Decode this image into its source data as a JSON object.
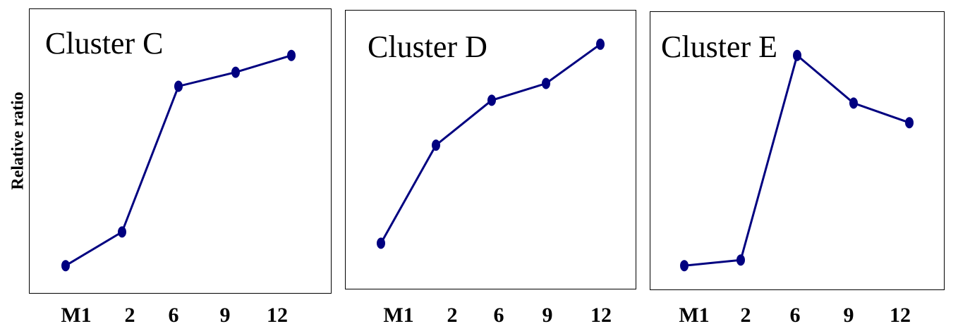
{
  "y_axis_label": "Relative ratio",
  "x_tick_labels": [
    "M1",
    "2",
    "6",
    "9",
    "12"
  ],
  "series_color": "#000080",
  "chart_data": [
    {
      "type": "line",
      "title": "Cluster C",
      "categories": [
        "M1",
        "2",
        "6",
        "9",
        "12"
      ],
      "values": [
        0.1,
        0.22,
        0.74,
        0.79,
        0.85
      ],
      "ylim": [
        0,
        1
      ],
      "ylabel": "Relative ratio",
      "grid": false
    },
    {
      "type": "line",
      "title": "Cluster D",
      "categories": [
        "M1",
        "2",
        "6",
        "9",
        "12"
      ],
      "values": [
        0.18,
        0.53,
        0.69,
        0.75,
        0.89
      ],
      "ylim": [
        0,
        1
      ],
      "ylabel": "Relative ratio",
      "grid": false
    },
    {
      "type": "line",
      "title": "Cluster E",
      "categories": [
        "M1",
        "2",
        "6",
        "9",
        "12"
      ],
      "values": [
        0.1,
        0.12,
        0.85,
        0.68,
        0.61
      ],
      "ylim": [
        0,
        1
      ],
      "ylabel": "Relative ratio",
      "grid": false
    }
  ]
}
